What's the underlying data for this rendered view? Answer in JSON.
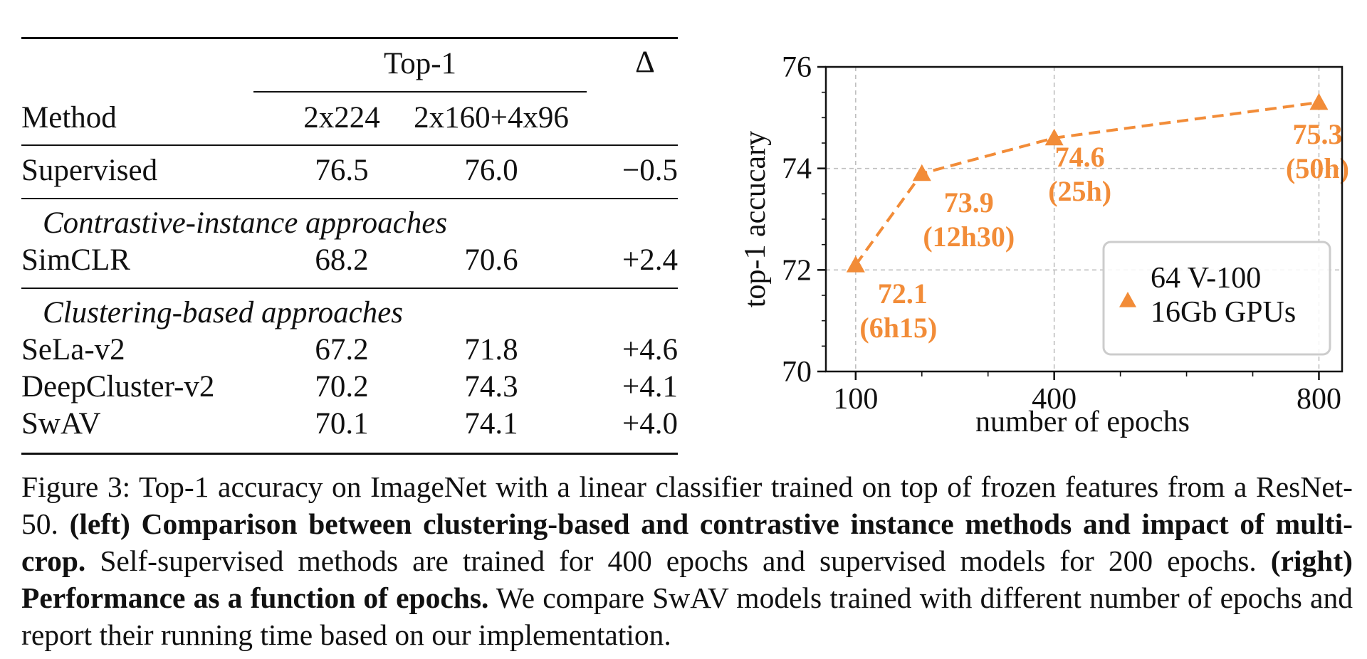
{
  "table": {
    "top1_header": "Top-1",
    "delta_header": "Δ",
    "method_header": "Method",
    "col1_header": "2x224",
    "col2_header": "2x160+4x96",
    "supervised": {
      "method": "Supervised",
      "v1": "76.5",
      "v2": "76.0",
      "delta": "−0.5"
    },
    "section1": "Contrastive-instance approaches",
    "simclr": {
      "method": "SimCLR",
      "v1": "68.2",
      "v2": "70.6",
      "delta": "+2.4"
    },
    "section2": "Clustering-based approaches",
    "sela": {
      "method": "SeLa-v2",
      "v1": "67.2",
      "v2": "71.8",
      "delta": "+4.6"
    },
    "deepcluster": {
      "method": "DeepCluster-v2",
      "v1": "70.2",
      "v2": "74.3",
      "delta": "+4.1"
    },
    "swav": {
      "method": "SwAV",
      "v1": "70.1",
      "v2": "74.1",
      "delta": "+4.0"
    }
  },
  "chart_data": {
    "type": "line",
    "title": "",
    "xlabel": "number of epochs",
    "ylabel": "top-1 accuracy",
    "ylabel_rendered": "top-1 accucary",
    "xlim": [
      55,
      835
    ],
    "ylim": [
      70,
      76
    ],
    "x_ticks": [
      100,
      400,
      800
    ],
    "y_ticks": [
      70,
      72,
      74,
      76
    ],
    "grid": true,
    "legend_placement": "lower-right",
    "series": [
      {
        "name": "64 V-100 16Gb GPUs",
        "legend_line1": "64 V-100",
        "legend_line2": "16Gb GPUs",
        "color": "#f28c38",
        "marker": "triangle",
        "linestyle": "dashed",
        "points": [
          {
            "x": 100,
            "y": 72.1,
            "label": "72.1",
            "time": "(6h15)"
          },
          {
            "x": 200,
            "y": 73.9,
            "label": "73.9",
            "time": "(12h30)"
          },
          {
            "x": 400,
            "y": 74.6,
            "label": "74.6",
            "time": "(25h)"
          },
          {
            "x": 800,
            "y": 75.3,
            "label": "75.3",
            "time": "(50h)"
          }
        ]
      }
    ]
  },
  "caption": {
    "p1": "Figure 3: Top-1 accuracy on ImageNet with a linear classifier trained on top of frozen features from a ResNet-50.",
    "b1": "(left) Comparison between clustering-based and contrastive instance methods and impact of multi-crop.",
    "p2": "Self-supervised methods are trained for 400 epochs and supervised models for 200 epochs.",
    "b2": "(right) Performance as a function of epochs.",
    "p3": "We compare SwAV models trained with different number of epochs and report their running time based on our implementation."
  }
}
